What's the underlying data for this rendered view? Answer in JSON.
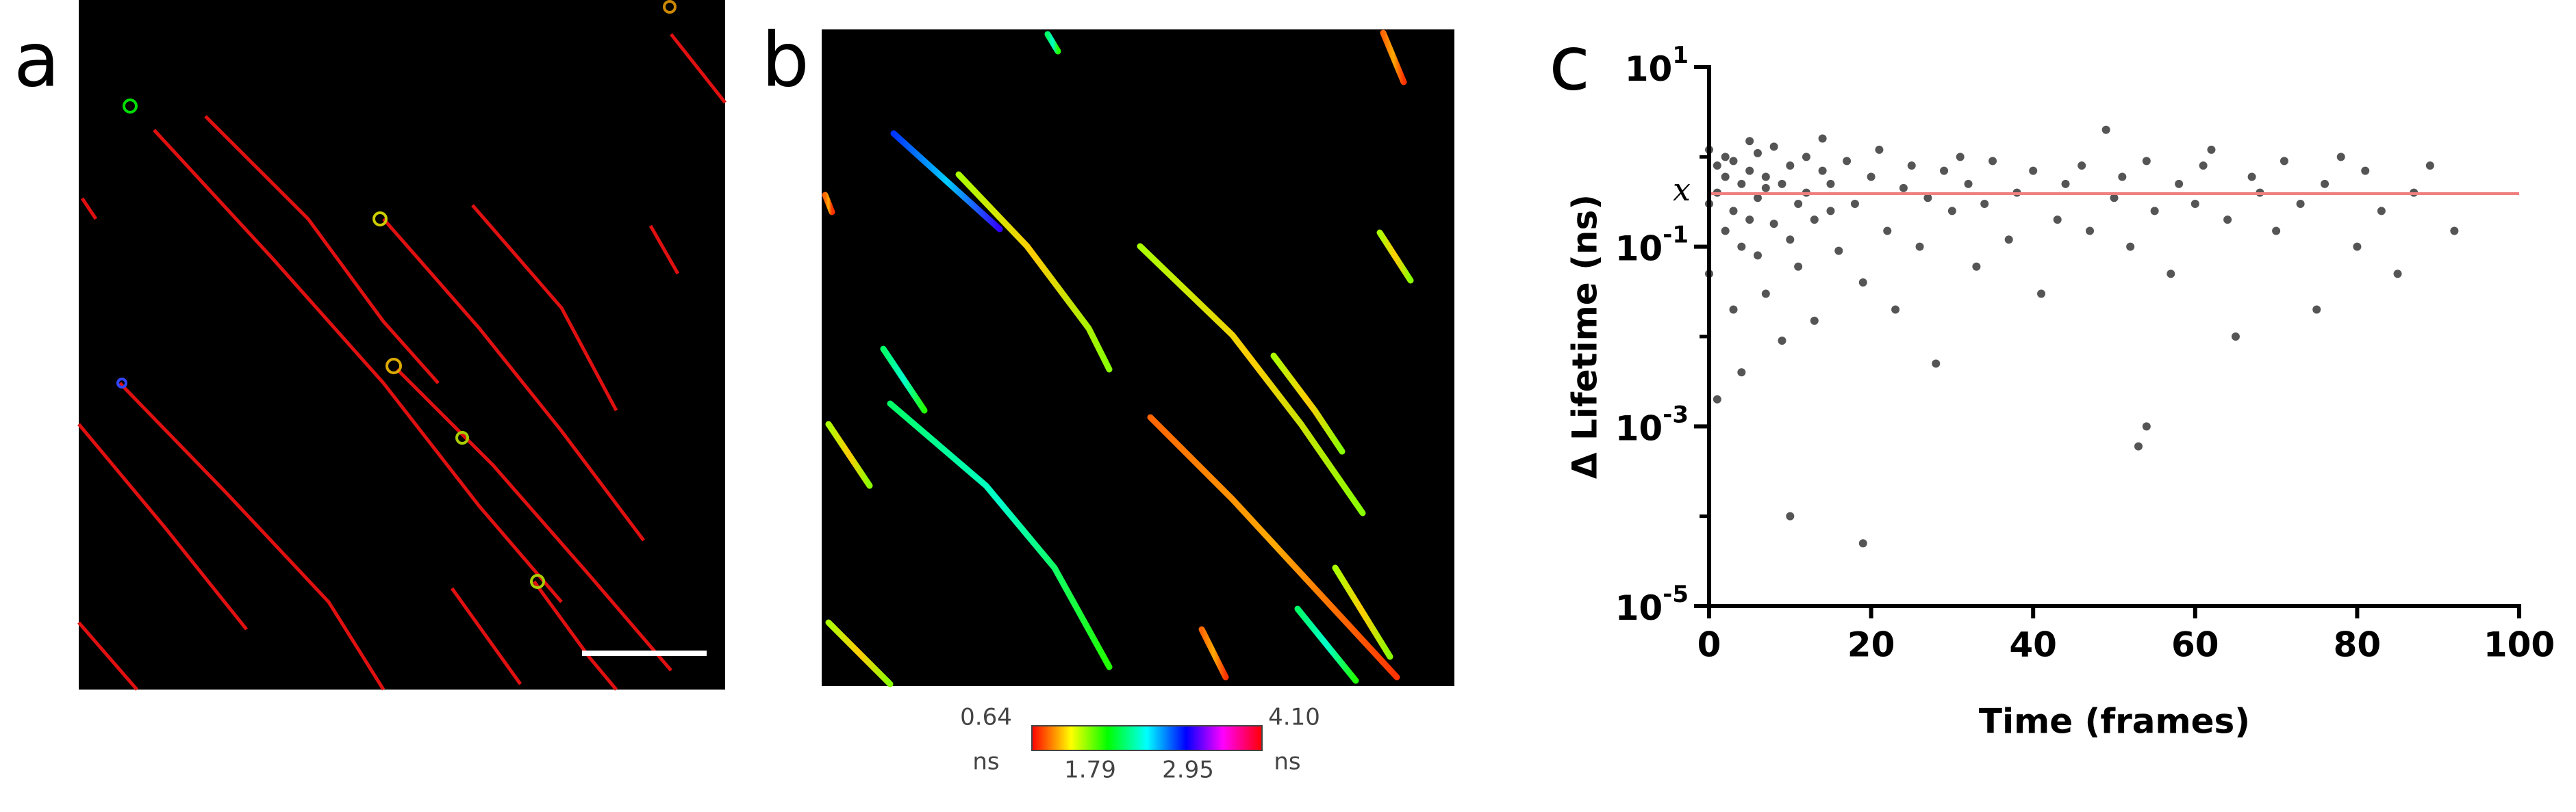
{
  "panels": {
    "a": {
      "label": "a"
    },
    "b": {
      "label": "b",
      "colorbar": {
        "min_label": "0.64",
        "max_label": "4.10",
        "unit": "ns",
        "ticks": [
          "1.79",
          "2.95"
        ]
      }
    },
    "c": {
      "label": "c"
    }
  },
  "chart_data": {
    "type": "scatter",
    "xlabel": "Time (frames)",
    "ylabel": "Δ  Lifetime (ns)",
    "color": "#555555",
    "x": [
      0,
      0,
      0,
      1,
      1,
      1,
      2,
      2,
      2,
      3,
      3,
      3,
      4,
      4,
      4,
      5,
      5,
      5,
      6,
      6,
      6,
      7,
      7,
      7,
      8,
      8,
      9,
      9,
      10,
      10,
      10,
      11,
      11,
      12,
      12,
      13,
      13,
      14,
      14,
      15,
      15,
      16,
      17,
      18,
      19,
      19,
      20,
      21,
      22,
      23,
      24,
      25,
      26,
      27,
      28,
      29,
      30,
      31,
      32,
      33,
      34,
      35,
      37,
      38,
      40,
      41,
      43,
      44,
      46,
      47,
      49,
      50,
      51,
      52,
      53,
      54,
      54,
      55,
      57,
      58,
      60,
      61,
      62,
      64,
      65,
      67,
      68,
      70,
      71,
      73,
      75,
      76,
      78,
      80,
      81,
      83,
      85,
      87,
      89,
      92
    ],
    "values": [
      1.2,
      0.3,
      0.05,
      0.8,
      0.002,
      0.4,
      0.15,
      1.0,
      0.6,
      0.02,
      0.25,
      0.9,
      0.1,
      0.5,
      0.004,
      0.7,
      1.5,
      0.2,
      0.08,
      0.35,
      1.1,
      0.45,
      0.03,
      0.6,
      0.18,
      1.3,
      0.009,
      0.5,
      0.12,
      0.0001,
      0.8,
      0.3,
      0.06,
      1.0,
      0.4,
      0.2,
      0.015,
      0.7,
      1.6,
      0.25,
      0.5,
      0.09,
      0.9,
      0.3,
      0.04,
      5e-05,
      0.6,
      1.2,
      0.15,
      0.02,
      0.45,
      0.8,
      0.1,
      0.35,
      0.005,
      0.7,
      0.25,
      1.0,
      0.5,
      0.06,
      0.3,
      0.9,
      0.12,
      0.4,
      0.7,
      0.03,
      0.2,
      0.5,
      0.8,
      0.15,
      2.0,
      0.35,
      0.6,
      0.1,
      0.0006,
      0.001,
      0.9,
      0.25,
      0.05,
      0.5,
      0.3,
      0.8,
      1.2,
      0.2,
      0.01,
      0.6,
      0.4,
      0.15,
      0.9,
      0.3,
      0.02,
      0.5,
      1.0,
      0.1,
      0.7,
      0.25,
      0.05,
      0.4,
      0.8,
      0.15
    ],
    "xlim": [
      0,
      100
    ],
    "xticks": [
      0,
      20,
      40,
      60,
      80,
      100
    ],
    "ylim": [
      1e-05,
      10
    ],
    "yscale": "log",
    "yticks": [
      {
        "value": 10,
        "label": "10",
        "exponent": "1"
      },
      {
        "value": 0.1,
        "label": "10",
        "exponent": "-1"
      },
      {
        "value": 0.001,
        "label": "10",
        "exponent": "-3"
      },
      {
        "value": 1e-05,
        "label": "10",
        "exponent": "-5"
      }
    ],
    "yminor_ticks": [
      1,
      0.01,
      0.0001
    ],
    "hline": {
      "value": 0.39,
      "label": "x",
      "color": "#f08080"
    }
  }
}
